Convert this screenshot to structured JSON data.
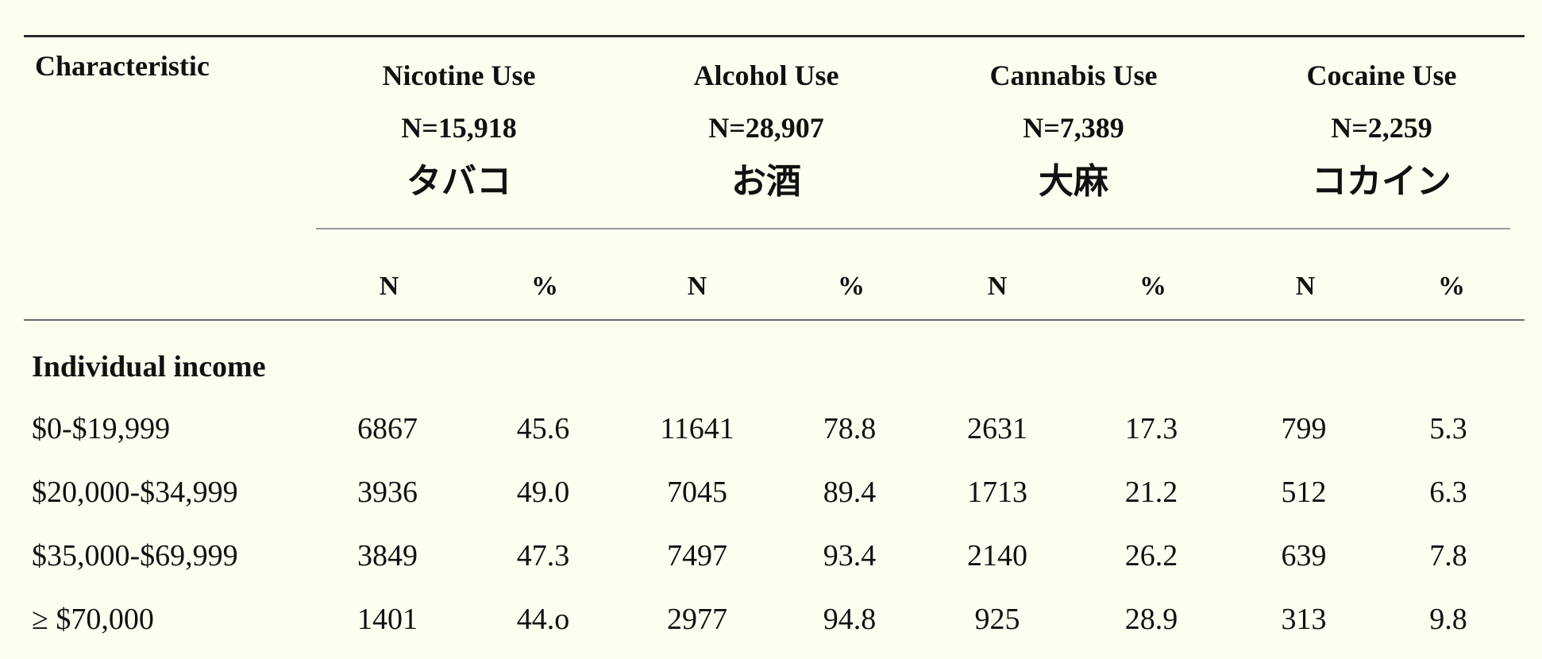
{
  "table": {
    "characteristic_header": "Characteristic",
    "groups": [
      {
        "name": "Nicotine Use",
        "n": "N=15,918",
        "jp": "タバコ"
      },
      {
        "name": "Alcohol Use",
        "n": "N=28,907",
        "jp": "お酒"
      },
      {
        "name": "Cannabis Use",
        "n": "N=7,389",
        "jp": "大麻"
      },
      {
        "name": "Cocaine Use",
        "n": "N=2,259",
        "jp": "コカイン"
      }
    ],
    "sub_headers": [
      "N",
      "%",
      "N",
      "%",
      "N",
      "%",
      "N",
      "%"
    ],
    "section_label": "Individual income",
    "rows": [
      {
        "label": "$0-$19,999",
        "cells": [
          "6867",
          "45.6",
          "11641",
          "78.8",
          "2631",
          "17.3",
          "799",
          "5.3"
        ]
      },
      {
        "label": "$20,000-$34,999",
        "cells": [
          "3936",
          "49.0",
          "7045",
          "89.4",
          "1713",
          "21.2",
          "512",
          "6.3"
        ]
      },
      {
        "label": "$35,000-$69,999",
        "cells": [
          "3849",
          "47.3",
          "7497",
          "93.4",
          "2140",
          "26.2",
          "639",
          "7.8"
        ]
      },
      {
        "label": "≥ $70,000",
        "cells": [
          "1401",
          "44.o",
          "2977",
          "94.8",
          "925",
          "28.9",
          "313",
          "9.8"
        ]
      }
    ]
  }
}
